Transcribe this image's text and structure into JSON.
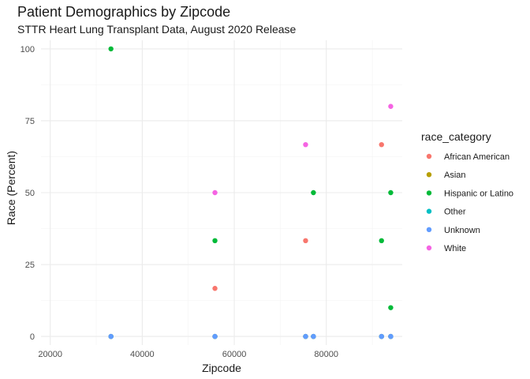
{
  "chart_data": {
    "type": "scatter",
    "title": "Patient Demographics by Zipcode",
    "subtitle": "STTR Heart Lung Transplant Data, August 2020 Release",
    "xlabel": "Zipcode",
    "ylabel": "Race (Percent)",
    "xlim": [
      18000,
      96500
    ],
    "ylim": [
      -3,
      103
    ],
    "x_ticks": [
      20000,
      40000,
      60000,
      80000
    ],
    "y_ticks": [
      0,
      25,
      50,
      75,
      100
    ],
    "grid": true,
    "legend_position": "right",
    "legend_title": "race_category",
    "series": [
      {
        "name": "African American",
        "color": "#F8766D",
        "points": [
          [
            33200,
            0
          ],
          [
            55800,
            16.7
          ],
          [
            55800,
            0
          ],
          [
            75500,
            33.3
          ],
          [
            75500,
            0
          ],
          [
            77200,
            0
          ],
          [
            92000,
            66.7
          ],
          [
            92000,
            0
          ],
          [
            94000,
            0
          ]
        ]
      },
      {
        "name": "Asian",
        "color": "#B79F00",
        "points": [
          [
            33200,
            0
          ],
          [
            55800,
            0
          ],
          [
            75500,
            0
          ],
          [
            77200,
            0
          ],
          [
            92000,
            0
          ],
          [
            94000,
            0
          ]
        ]
      },
      {
        "name": "Hispanic or Latino",
        "color": "#00BA38",
        "points": [
          [
            33200,
            100
          ],
          [
            55800,
            33.3
          ],
          [
            77200,
            50
          ],
          [
            92000,
            33.3
          ],
          [
            94000,
            50
          ],
          [
            94000,
            10
          ]
        ]
      },
      {
        "name": "Other",
        "color": "#00BFC4",
        "points": [
          [
            33200,
            0
          ],
          [
            55800,
            0
          ],
          [
            75500,
            0
          ],
          [
            77200,
            0
          ],
          [
            92000,
            0
          ],
          [
            94000,
            0
          ]
        ]
      },
      {
        "name": "Unknown",
        "color": "#619CFF",
        "points": [
          [
            33200,
            0
          ],
          [
            55800,
            0
          ],
          [
            75500,
            0
          ],
          [
            77200,
            0
          ],
          [
            92000,
            0
          ],
          [
            94000,
            0
          ]
        ]
      },
      {
        "name": "White",
        "color": "#F564E3",
        "points": [
          [
            55800,
            50
          ],
          [
            75500,
            66.7
          ],
          [
            94000,
            80
          ]
        ]
      }
    ]
  }
}
